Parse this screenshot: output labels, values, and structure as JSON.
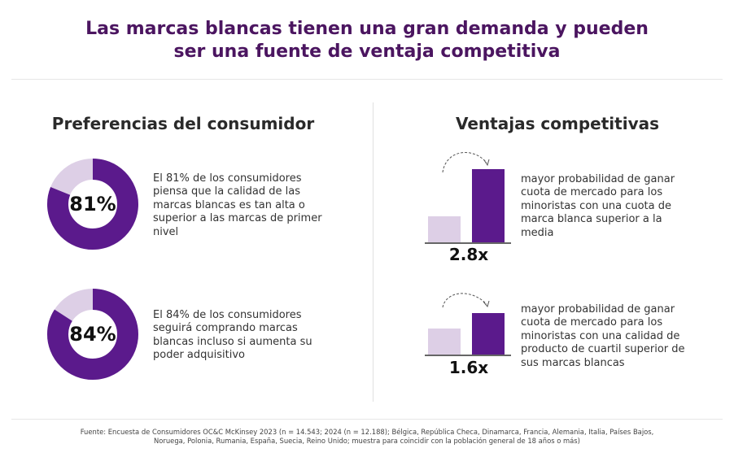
{
  "header": {
    "title_line1": "Las marcas blancas tienen una gran demanda y pueden",
    "title_line2": "ser una fuente de ventaja competitiva"
  },
  "left": {
    "heading": "Preferencias del consumidor",
    "items": [
      {
        "percent_label": "81%",
        "percent_value": 81,
        "text": "El 81% de los consumidores piensa que la calidad de las marcas blancas es tan alta o superior a las marcas de primer nivel"
      },
      {
        "percent_label": "84%",
        "percent_value": 84,
        "text": "El 84% de los consumidores seguirá comprando marcas blancas incluso si aumenta su poder adquisitivo"
      }
    ]
  },
  "right": {
    "heading": "Ventajas competitivas",
    "items": [
      {
        "multiplier": "2.8x",
        "ratio": 2.8,
        "text": "mayor probabilidad de ganar cuota de mercado para los minoristas con una cuota de marca blanca superior a la media"
      },
      {
        "multiplier": "1.6x",
        "ratio": 1.6,
        "text": "mayor probabilidad de ganar cuota de mercado para los minoristas con una calidad de producto de cuartil superior de sus marcas blancas"
      }
    ]
  },
  "colors": {
    "title": "#4b1560",
    "primary": "#5b1a8c",
    "light": "#ddcfe6"
  },
  "footer": {
    "line1": "Fuente: Encuesta de Consumidores OC&C McKinsey 2023 (n = 14.543; 2024 (n = 12.188); Bélgica, República Checa, Dinamarca, Francia, Alemania, Italia, Países Bajos,",
    "line2": "Noruega, Polonia, Rumania, España, Suecia, Reino Unido; muestra para coincidir con la población general de 18 años o más)"
  }
}
